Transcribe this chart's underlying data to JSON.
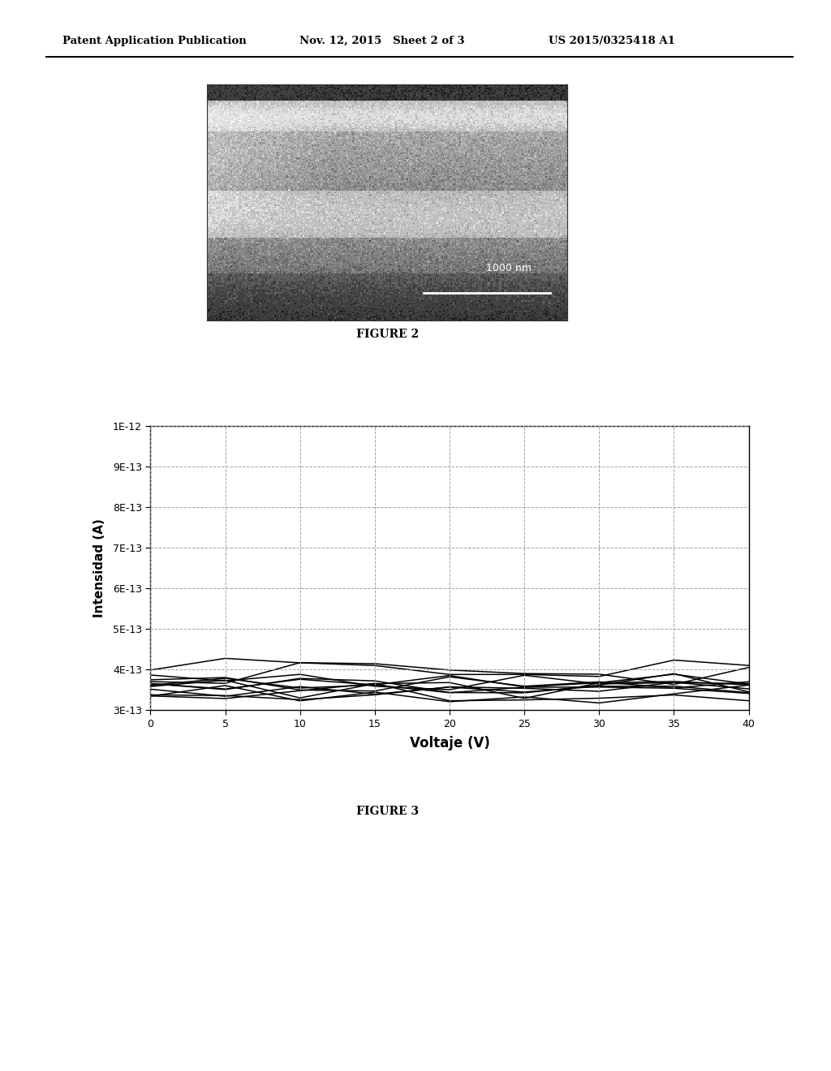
{
  "header_left": "Patent Application Publication",
  "header_center": "Nov. 12, 2015   Sheet 2 of 3",
  "header_right": "US 2015/0325418 A1",
  "figure2_label": "FIGURE 2",
  "figure3_label": "FIGURE 3",
  "xlabel": "Voltaje (V)",
  "ylabel": "Intensidad (A)",
  "xmin": 0,
  "xmax": 40,
  "ymin": 3e-13,
  "ymax": 1e-12,
  "ytick_values": [
    3e-13,
    4e-13,
    5e-13,
    6e-13,
    7e-13,
    8e-13,
    9e-13,
    1e-12
  ],
  "ytick_labels": [
    "3E-13",
    "4E-13",
    "5E-13",
    "6E-13",
    "7E-13",
    "8E-13",
    "9E-13",
    "1E-12"
  ],
  "xtick_values": [
    0,
    5,
    10,
    15,
    20,
    25,
    30,
    35,
    40
  ],
  "background_color": "#ffffff",
  "line_color": "#000000",
  "grid_color": "#999999",
  "scale_bar_text": "1000 nm",
  "num_lines": 12,
  "base_current": 3.55e-13,
  "noise_amplitude": 2.5e-14,
  "seed": 42
}
